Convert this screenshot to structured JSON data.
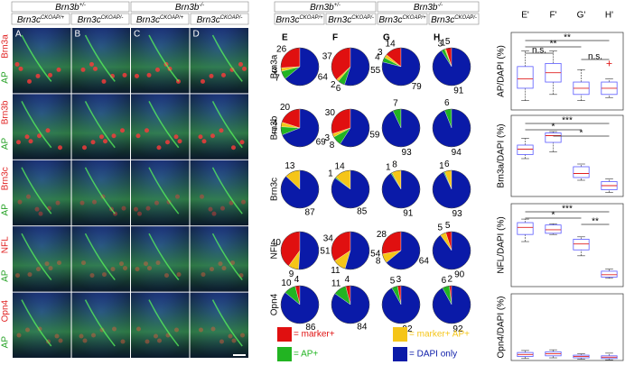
{
  "figure": {
    "micrographs": {
      "genotype_headers": [
        {
          "base": "Brn3b",
          "sup": "+/-"
        },
        {
          "base": "Brn3b",
          "sup": "-/-"
        }
      ],
      "column_headers": [
        {
          "base": "Brn3c",
          "sup": "CKOAP/+"
        },
        {
          "base": "Brn3c",
          "sup": "CKOAP/-"
        },
        {
          "base": "Brn3c",
          "sup": "CKOAP/+"
        },
        {
          "base": "Brn3c",
          "sup": "CKOAP/-"
        }
      ],
      "panels": [
        "A",
        "B",
        "C",
        "D"
      ],
      "rows": [
        [
          "Brn3a",
          "AP"
        ],
        [
          "Brn3b",
          "AP"
        ],
        [
          "Brn3c",
          "AP"
        ],
        [
          "NFL",
          "AP"
        ],
        [
          "Opn4",
          "AP"
        ]
      ]
    }
  },
  "chart_data": [
    {
      "type": "pie",
      "genotype_headers": [
        {
          "base": "Brn3b",
          "sup": "+/-"
        },
        {
          "base": "Brn3b",
          "sup": "-/-"
        }
      ],
      "column_headers": [
        {
          "base": "Brn3c",
          "sup": "CKOAP/+"
        },
        {
          "base": "Brn3c",
          "sup": "CKOAP/-"
        },
        {
          "base": "Brn3c",
          "sup": "CKOAP/+"
        },
        {
          "base": "Brn3c",
          "sup": "CKOAP/-"
        }
      ],
      "columns": [
        "E",
        "F",
        "G",
        "H"
      ],
      "rows": [
        "Brn3a",
        "Brn3b",
        "Brn3c",
        "NFL",
        "Opn4"
      ],
      "categories": [
        "= marker+",
        "= marker+ AP+",
        "= AP+",
        "= DAPI only"
      ],
      "colors": [
        "#e01010",
        "#f5c518",
        "#22b422",
        "#0a1aa8"
      ],
      "values": [
        [
          [
            26,
            3,
            7,
            64
          ],
          [
            37,
            2,
            6,
            55
          ],
          [
            14,
            3,
            4,
            79
          ],
          [
            5,
            1,
            3,
            91
          ]
        ],
        [
          [
            20,
            4,
            7,
            69
          ],
          [
            30,
            3,
            8,
            59
          ],
          [
            null,
            null,
            7,
            93
          ],
          [
            null,
            null,
            6,
            94
          ]
        ],
        [
          [
            null,
            13,
            null,
            87
          ],
          [
            null,
            14,
            1,
            85
          ],
          [
            null,
            8,
            1,
            91
          ],
          [
            null,
            6,
            1,
            93
          ]
        ],
        [
          [
            40,
            9,
            null,
            51
          ],
          [
            34,
            11,
            null,
            54
          ],
          [
            28,
            8,
            null,
            64
          ],
          [
            5,
            5,
            null,
            90
          ]
        ],
        [
          [
            4,
            null,
            10,
            86
          ],
          [
            4,
            null,
            11,
            84
          ],
          [
            3,
            null,
            5,
            92
          ],
          [
            2,
            null,
            6,
            92
          ]
        ]
      ]
    },
    {
      "type": "box",
      "categories": [
        "E'",
        "F'",
        "G'",
        "H'"
      ],
      "box_color": "#5a5aff",
      "median_color": "#e02020",
      "panels": [
        {
          "ylabel": "AP/DAPI (%)",
          "ylim": [
            0,
            25
          ],
          "stats": [
            {
              "min": 3,
              "q1": 7,
              "median": 10,
              "q3": 14,
              "max": 19
            },
            {
              "min": 5,
              "q1": 9,
              "median": 12,
              "q3": 15,
              "max": 19
            },
            {
              "min": 3,
              "q1": 5,
              "median": 7,
              "q3": 9,
              "max": 13
            },
            {
              "min": 4,
              "q1": 5,
              "median": 7,
              "q3": 9,
              "max": 10
            }
          ],
          "outliers": [
            [],
            [],
            [],
            [
              15
            ]
          ],
          "comparisons": [
            {
              "label": "**",
              "pair": [
                "E'",
                "H'"
              ]
            },
            {
              "label": "**",
              "pair": [
                "E'",
                "G'"
              ]
            },
            {
              "label": "n.s.",
              "pair": [
                "E'",
                "F'"
              ]
            },
            {
              "label": "n.s.",
              "pair": [
                "G'",
                "H'"
              ]
            }
          ]
        },
        {
          "ylabel": "Brn3a/DAPI (%)",
          "ylim": [
            0,
            60
          ],
          "stats": [
            {
              "min": 28,
              "q1": 31,
              "median": 35,
              "q3": 38,
              "max": 43
            },
            {
              "min": 33,
              "q1": 40,
              "median": 45,
              "q3": 47,
              "max": 48
            },
            {
              "min": 12,
              "q1": 14,
              "median": 17,
              "q3": 22,
              "max": 24
            },
            {
              "min": 3,
              "q1": 5,
              "median": 8,
              "q3": 11,
              "max": 13
            }
          ],
          "outliers": [
            [],
            [],
            [],
            []
          ],
          "comparisons": [
            {
              "label": "***",
              "pair": [
                "E'",
                "H'"
              ]
            },
            {
              "label": "*",
              "pair": [
                "E'",
                "G'"
              ]
            },
            {
              "label": "*",
              "pair": [
                "F'",
                "H'"
              ]
            }
          ]
        },
        {
          "ylabel": "NFL/DAPI (%)",
          "ylim": [
            0,
            70
          ],
          "stats": [
            {
              "min": 38,
              "q1": 44,
              "median": 50,
              "q3": 54,
              "max": 57
            },
            {
              "min": 44,
              "q1": 45,
              "median": 48,
              "q3": 52,
              "max": 53
            },
            {
              "min": 26,
              "q1": 31,
              "median": 36,
              "q3": 40,
              "max": 42
            },
            {
              "min": 7,
              "q1": 8,
              "median": 10,
              "q3": 13,
              "max": 15
            }
          ],
          "outliers": [
            [],
            [],
            [],
            []
          ],
          "comparisons": [
            {
              "label": "***",
              "pair": [
                "E'",
                "H'"
              ]
            },
            {
              "label": "*",
              "pair": [
                "E'",
                "G'"
              ]
            },
            {
              "label": "**",
              "pair": [
                "G'",
                "H'"
              ]
            }
          ]
        },
        {
          "ylabel": "Opn4/DAPI (%)",
          "ylim": [
            0,
            10
          ],
          "stats": [
            {
              "min": 0.3,
              "q1": 0.6,
              "median": 0.9,
              "q3": 1.2,
              "max": 1.5
            },
            {
              "min": 0.4,
              "q1": 0.7,
              "median": 1.0,
              "q3": 1.3,
              "max": 1.6
            },
            {
              "min": 0.2,
              "q1": 0.4,
              "median": 0.6,
              "q3": 0.8,
              "max": 1.0
            },
            {
              "min": 0.1,
              "q1": 0.3,
              "median": 0.5,
              "q3": 0.7,
              "max": 1.1
            }
          ],
          "outliers": [
            [],
            [],
            [],
            []
          ],
          "comparisons": []
        }
      ]
    }
  ]
}
